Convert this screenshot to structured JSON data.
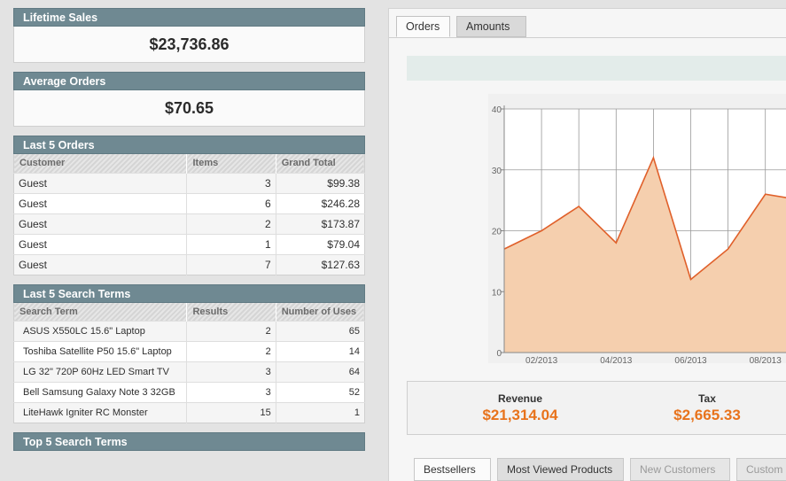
{
  "lifetime_sales": {
    "title": "Lifetime Sales",
    "value": "$23,736.86"
  },
  "average_orders": {
    "title": "Average Orders",
    "value": "$70.65"
  },
  "last_orders": {
    "title": "Last 5 Orders",
    "columns": [
      "Customer",
      "Items",
      "Grand Total"
    ],
    "rows": [
      [
        "Guest",
        "3",
        "$99.38"
      ],
      [
        "Guest",
        "6",
        "$246.28"
      ],
      [
        "Guest",
        "2",
        "$173.87"
      ],
      [
        "Guest",
        "1",
        "$79.04"
      ],
      [
        "Guest",
        "7",
        "$127.63"
      ]
    ]
  },
  "last_search": {
    "title": "Last 5 Search Terms",
    "columns": [
      "Search Term",
      "Results",
      "Number of Uses"
    ],
    "rows": [
      [
        "ASUS X550LC 15.6\" Laptop",
        "2",
        "65"
      ],
      [
        "Toshiba Satellite P50 15.6\" Laptop",
        "2",
        "14"
      ],
      [
        "LG 32\" 720P 60Hz LED Smart TV",
        "3",
        "64"
      ],
      [
        "Bell Samsung Galaxy Note 3 32GB",
        "3",
        "52"
      ],
      [
        "LiteHawk Igniter RC Monster",
        "15",
        "1"
      ]
    ]
  },
  "top_search": {
    "title": "Top 5 Search Terms"
  },
  "chart_tabs": {
    "orders": "Orders",
    "amounts": "Amounts"
  },
  "chart_data": {
    "type": "area",
    "x": [
      "01/2013",
      "02/2013",
      "03/2013",
      "04/2013",
      "05/2013",
      "06/2013",
      "07/2013",
      "08/2013",
      "09/2013"
    ],
    "x_tick_labels": [
      "02/2013",
      "04/2013",
      "06/2013",
      "08/2013"
    ],
    "y_tick_labels": [
      "0",
      "10",
      "20",
      "30",
      "40"
    ],
    "ylim": [
      0,
      40
    ],
    "series": [
      {
        "values": [
          17,
          20,
          24,
          18,
          32,
          12,
          17,
          26,
          25
        ],
        "color": "#f5cfae",
        "line_color": "#e0602a"
      }
    ],
    "grid": true
  },
  "totals": {
    "revenue_label": "Revenue",
    "revenue_value": "$21,314.04",
    "tax_label": "Tax",
    "tax_value": "$2,665.33"
  },
  "bottom_tabs": {
    "bestsellers": "Bestsellers",
    "most_viewed": "Most Viewed Products",
    "new_customers": "New Customers",
    "customers": "Custom"
  },
  "colors": {
    "accent": "#e8731c",
    "header": "#6f8992"
  }
}
